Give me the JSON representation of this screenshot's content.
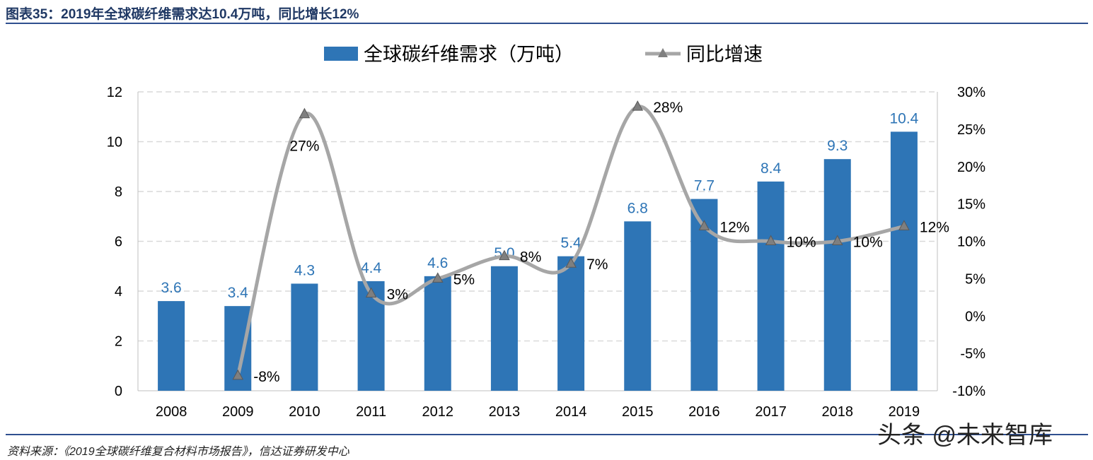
{
  "title": "图表35：2019年全球碳纤维需求达10.4万吨，同比增长12%",
  "source": "资料来源：《2019全球碳纤维复合材料市场报告》，信达证券研发中心",
  "watermark": "头条 @未来智库",
  "chart_data": {
    "type": "bar+line",
    "categories": [
      "2008",
      "2009",
      "2010",
      "2011",
      "2012",
      "2013",
      "2014",
      "2015",
      "2016",
      "2017",
      "2018",
      "2019"
    ],
    "series": [
      {
        "name": "全球碳纤维需求（万吨）",
        "type": "bar",
        "axis": "left",
        "color": "#2E75B6",
        "values": [
          3.6,
          3.4,
          4.3,
          4.4,
          4.6,
          5.0,
          5.4,
          6.8,
          7.7,
          8.4,
          9.3,
          10.4
        ],
        "labels": [
          "3.6",
          "3.4",
          "4.3",
          "4.4",
          "4.6",
          "5.0",
          "5.4",
          "6.8",
          "7.7",
          "8.4",
          "9.3",
          "10.4"
        ]
      },
      {
        "name": "同比增速",
        "type": "line",
        "axis": "right",
        "color": "#A6A6A6",
        "marker_color": "#7F7F7F",
        "values": [
          null,
          -8,
          27,
          3,
          5,
          8,
          7,
          28,
          12,
          10,
          10,
          12
        ],
        "labels": [
          "",
          "-8%",
          "27%",
          "3%",
          "5%",
          "8%",
          "7%",
          "28%",
          "12%",
          "10%",
          "10%",
          "12%"
        ]
      }
    ],
    "y_left": {
      "range": [
        0,
        12
      ],
      "ticks": [
        "0",
        "2",
        "4",
        "6",
        "8",
        "10",
        "12"
      ]
    },
    "y_right": {
      "range": [
        -10,
        30
      ],
      "ticks": [
        "-10%",
        "-5%",
        "0%",
        "5%",
        "10%",
        "15%",
        "20%",
        "25%",
        "30%"
      ]
    },
    "grid": "horizontal dashed",
    "legend": "top"
  }
}
